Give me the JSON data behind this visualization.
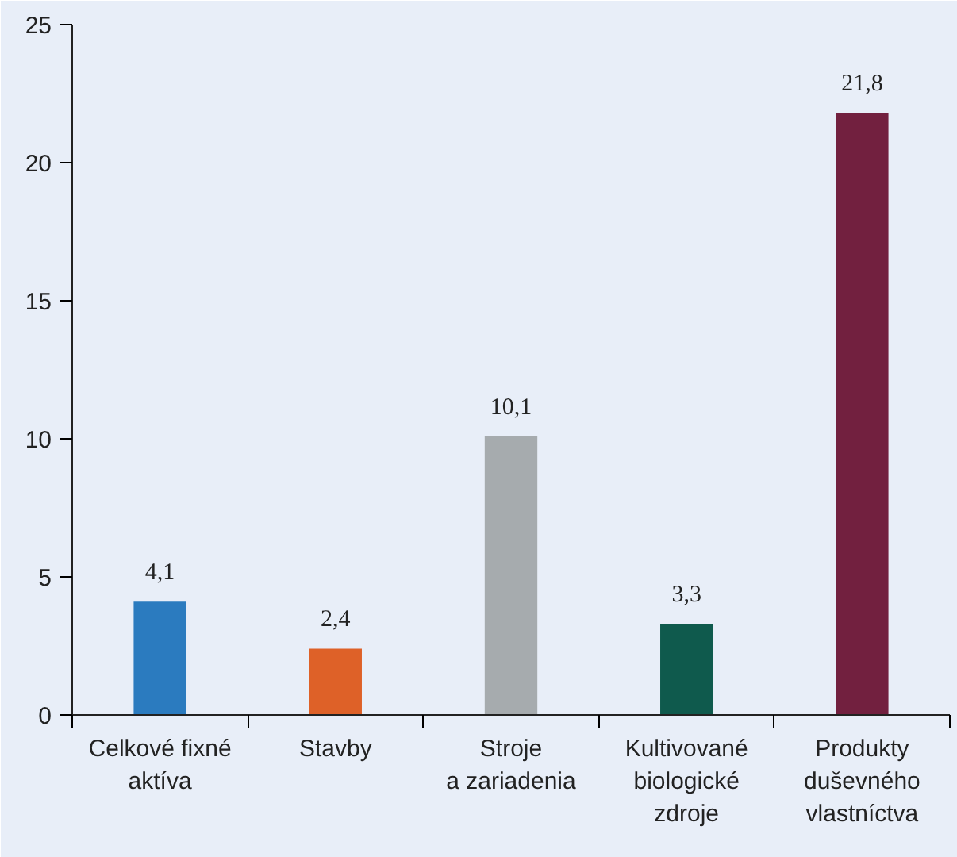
{
  "chart_data": {
    "type": "bar",
    "categories": [
      "Celkové fixné\naktíva",
      "Stavby",
      "Stroje\na zariadenia",
      "Kultivované\nbiologické\nzdroje",
      "Produkty\nduševného\nvlastníctva"
    ],
    "values": [
      4.1,
      2.4,
      10.1,
      3.3,
      21.8
    ],
    "colors": [
      "#2b7bbf",
      "#de6128",
      "#a6abae",
      "#0f5a4d",
      "#72203f"
    ],
    "value_labels": [
      "4,1",
      "2,4",
      "10,1",
      "3,3",
      "21,8"
    ],
    "ylim": [
      0,
      25
    ],
    "yticks": [
      0,
      5,
      10,
      15,
      20,
      25
    ],
    "grid": false
  }
}
